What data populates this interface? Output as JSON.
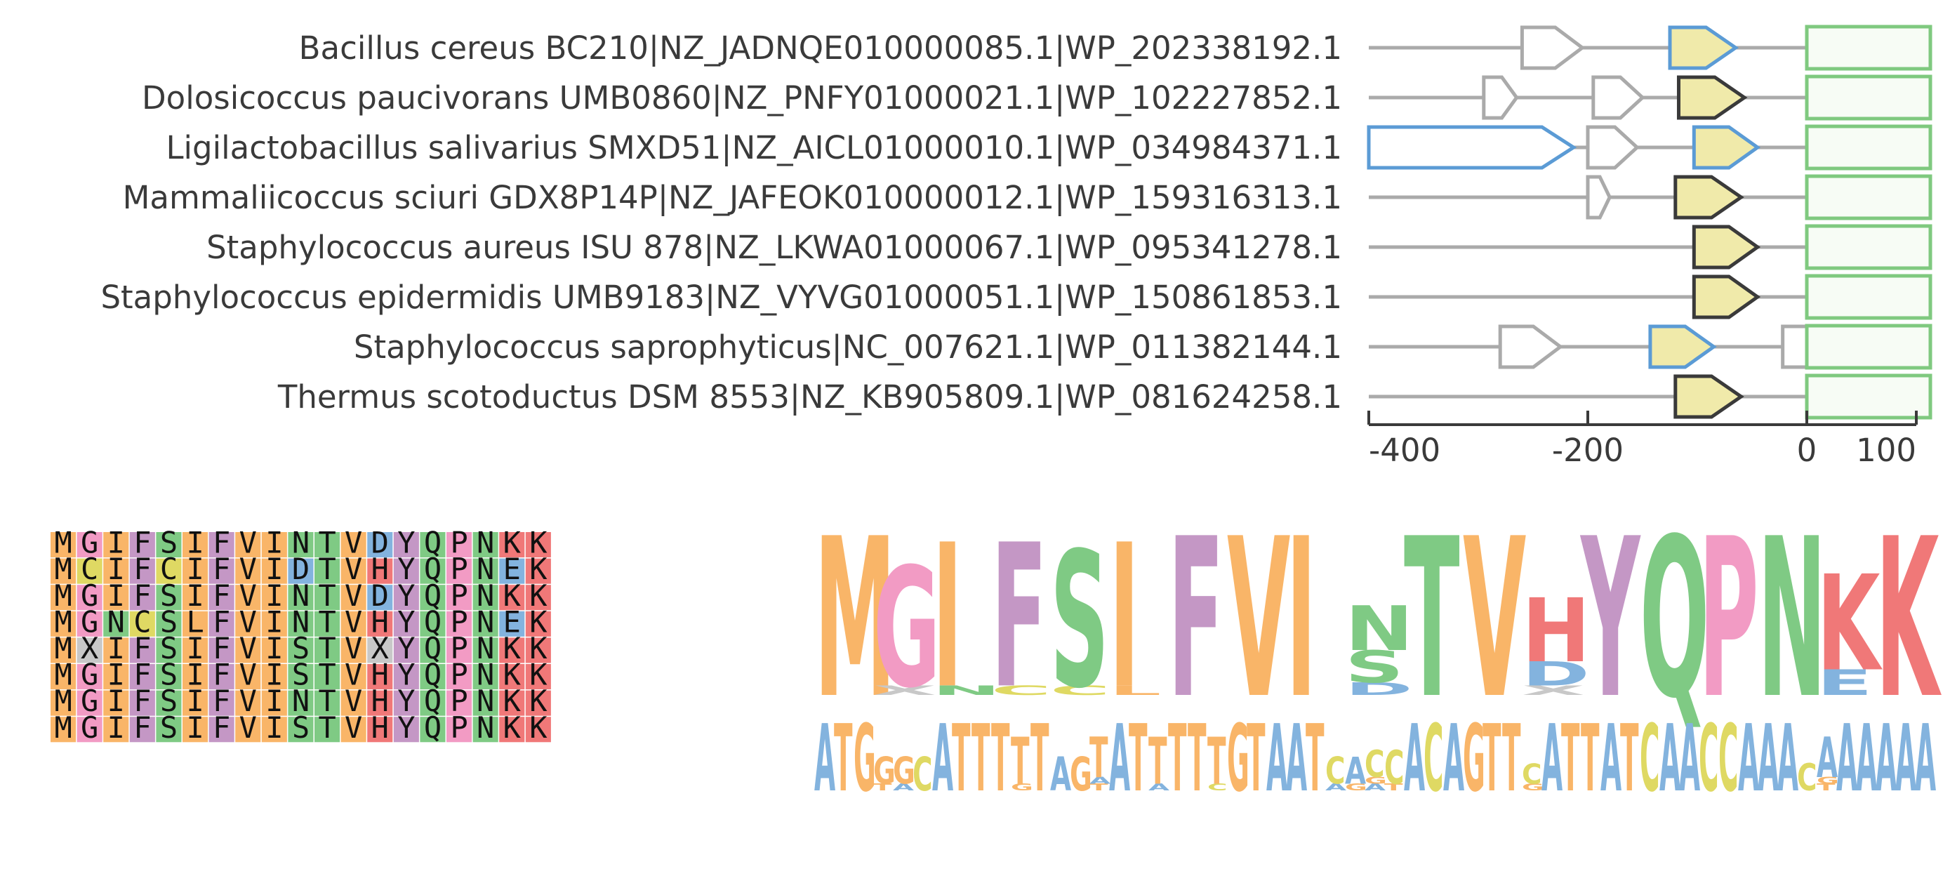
{
  "genomes": [
    {
      "label": "Bacillus cereus BC210|NZ_JADNQE010000085.1|WP_202338192.1",
      "genes": [
        {
          "start": -260,
          "end": -205,
          "strand": "+",
          "type": "other"
        },
        {
          "start": -125,
          "end": -65,
          "strand": "+",
          "type": "homolog"
        },
        {
          "start": 0,
          "end": 100,
          "strand": "box",
          "type": "target"
        }
      ]
    },
    {
      "label": "Dolosicoccus paucivorans UMB0860|NZ_PNFY01000021.1|WP_102227852.1",
      "genes": [
        {
          "start": -295,
          "end": -265,
          "strand": "+",
          "type": "other"
        },
        {
          "start": -195,
          "end": -150,
          "strand": "+",
          "type": "other"
        },
        {
          "start": -117,
          "end": -57,
          "strand": "+",
          "type": "focus"
        },
        {
          "start": 0,
          "end": 100,
          "strand": "box",
          "type": "target"
        }
      ]
    },
    {
      "label": "Ligilactobacillus salivarius SMXD51|NZ_AICL01000010.1|WP_034984371.1",
      "genes": [
        {
          "start": -400,
          "end": -213,
          "strand": "+",
          "type": "homolog"
        },
        {
          "start": -200,
          "end": -155,
          "strand": "+",
          "type": "other"
        },
        {
          "start": -103,
          "end": -45,
          "strand": "+",
          "type": "homolog"
        },
        {
          "start": 0,
          "end": 100,
          "strand": "box",
          "type": "target"
        }
      ]
    },
    {
      "label": "Mammaliicoccus sciuri GDX8P14P|NZ_JAFEOK010000012.1|WP_159316313.1",
      "genes": [
        {
          "start": -200,
          "end": -180,
          "strand": "+",
          "type": "other"
        },
        {
          "start": -120,
          "end": -60,
          "strand": "+",
          "type": "focus"
        },
        {
          "start": 0,
          "end": 100,
          "strand": "box",
          "type": "target"
        }
      ]
    },
    {
      "label": "Staphylococcus aureus ISU 878|NZ_LKWA01000067.1|WP_095341278.1",
      "genes": [
        {
          "start": -103,
          "end": -45,
          "strand": "+",
          "type": "focus"
        },
        {
          "start": 0,
          "end": 100,
          "strand": "box",
          "type": "target"
        }
      ]
    },
    {
      "label": "Staphylococcus epidermidis UMB9183|NZ_VYVG01000051.1|WP_150861853.1",
      "genes": [
        {
          "start": -103,
          "end": -45,
          "strand": "+",
          "type": "focus"
        },
        {
          "start": 0,
          "end": 100,
          "strand": "box",
          "type": "target"
        }
      ]
    },
    {
      "label": "Staphylococcus saprophyticus|NC_007621.1|WP_011382144.1",
      "genes": [
        {
          "start": -280,
          "end": -225,
          "strand": "+",
          "type": "other"
        },
        {
          "start": -143,
          "end": -85,
          "strand": "+",
          "type": "homolog"
        },
        {
          "start": -22,
          "end": 42,
          "strand": "+",
          "type": "other"
        },
        {
          "start": 0,
          "end": 100,
          "strand": "box",
          "type": "target"
        }
      ]
    },
    {
      "label": "Thermus scotoductus DSM 8553|NZ_KB905809.1|WP_081624258.1",
      "genes": [
        {
          "start": -120,
          "end": -60,
          "strand": "+",
          "type": "focus"
        },
        {
          "start": 0,
          "end": 100,
          "strand": "box",
          "type": "target"
        }
      ]
    }
  ],
  "axis": {
    "min": -400,
    "max": 100,
    "ticks": [
      -400,
      -200,
      0,
      100
    ]
  },
  "alignment": [
    "MGIFSIFVINTVDYQPNKK",
    "MCIFCIFVIDTVHYQPNEK",
    "MGIFSIFVINTVDYQPNKK",
    "MGNCSLFVINTVHYQPNEK",
    "MXIFSIFVISTVXYQPNKK",
    "MGIFSIFVISTVHYQPNKK",
    "MGIFSIFVINTVHYQPNKK",
    "MGIFSIFVISTVHYQPNKK"
  ],
  "protein_logo": [
    [
      [
        "M",
        1.0
      ]
    ],
    [
      [
        "X",
        0.06
      ],
      [
        "G",
        0.75
      ]
    ],
    [
      [
        "N",
        0.06
      ],
      [
        "I",
        0.9
      ]
    ],
    [
      [
        "C",
        0.06
      ],
      [
        "F",
        0.9
      ]
    ],
    [
      [
        "C",
        0.06
      ],
      [
        "S",
        0.85
      ]
    ],
    [
      [
        "L",
        0.06
      ],
      [
        "I",
        0.9
      ]
    ],
    [
      [
        "F",
        1.0
      ]
    ],
    [
      [
        "V",
        1.0
      ]
    ],
    [
      [
        "I",
        1.0
      ]
    ],
    [
      [
        "D",
        0.08
      ],
      [
        "S",
        0.2
      ],
      [
        "N",
        0.28
      ]
    ],
    [
      [
        "T",
        1.0
      ]
    ],
    [
      [
        "V",
        1.0
      ]
    ],
    [
      [
        "X",
        0.06
      ],
      [
        "D",
        0.15
      ],
      [
        "H",
        0.4
      ]
    ],
    [
      [
        "Y",
        1.0
      ]
    ],
    [
      [
        "Q",
        1.0
      ]
    ],
    [
      [
        "P",
        1.0
      ]
    ],
    [
      [
        "N",
        1.0
      ]
    ],
    [
      [
        "E",
        0.16
      ],
      [
        "K",
        0.6
      ]
    ],
    [
      [
        "K",
        1.0
      ]
    ]
  ],
  "dna_logo": [
    [
      [
        "A",
        1.0
      ]
    ],
    [
      [
        "T",
        1.0
      ]
    ],
    [
      [
        "G",
        1.0
      ]
    ],
    [
      [
        "T",
        0.1
      ],
      [
        "G",
        0.4
      ]
    ],
    [
      [
        "A",
        0.1
      ],
      [
        "G",
        0.4
      ]
    ],
    [
      [
        "C",
        0.5
      ]
    ],
    [
      [
        "A",
        1.0
      ]
    ],
    [
      [
        "T",
        1.0
      ]
    ],
    [
      [
        "T",
        1.0
      ]
    ],
    [
      [
        "T",
        1.0
      ]
    ],
    [
      [
        "G",
        0.1
      ],
      [
        "T",
        0.7
      ]
    ],
    [
      [
        "T",
        1.0
      ]
    ],
    [
      [
        "A",
        0.5
      ]
    ],
    [
      [
        "G",
        0.5
      ]
    ],
    [
      [
        "T",
        0.1
      ],
      [
        "A",
        0.1
      ],
      [
        "T",
        0.6
      ]
    ],
    [
      [
        "A",
        1.0
      ]
    ],
    [
      [
        "T",
        1.0
      ]
    ],
    [
      [
        "A",
        0.1
      ],
      [
        "T",
        0.7
      ]
    ],
    [
      [
        "T",
        1.0
      ]
    ],
    [
      [
        "T",
        1.0
      ]
    ],
    [
      [
        "C",
        0.1
      ],
      [
        "T",
        0.7
      ]
    ],
    [
      [
        "G",
        1.0
      ]
    ],
    [
      [
        "T",
        1.0
      ]
    ],
    [
      [
        "A",
        1.0
      ]
    ],
    [
      [
        "A",
        1.0
      ]
    ],
    [
      [
        "T",
        1.0
      ]
    ],
    [
      [
        "A",
        0.1
      ],
      [
        "C",
        0.4
      ]
    ],
    [
      [
        "G",
        0.1
      ],
      [
        "A",
        0.4
      ]
    ],
    [
      [
        "A",
        0.1
      ],
      [
        "G",
        0.1
      ],
      [
        "C",
        0.4
      ]
    ],
    [
      [
        "T",
        0.1
      ],
      [
        "C",
        0.5
      ]
    ],
    [
      [
        "A",
        1.0
      ]
    ],
    [
      [
        "C",
        1.0
      ]
    ],
    [
      [
        "A",
        1.0
      ]
    ],
    [
      [
        "G",
        1.0
      ]
    ],
    [
      [
        "T",
        1.0
      ]
    ],
    [
      [
        "T",
        1.0
      ]
    ],
    [
      [
        "G",
        0.1
      ],
      [
        "C",
        0.3
      ]
    ],
    [
      [
        "A",
        1.0
      ]
    ],
    [
      [
        "T",
        1.0
      ]
    ],
    [
      [
        "T",
        1.0
      ]
    ],
    [
      [
        "A",
        1.0
      ]
    ],
    [
      [
        "T",
        1.0
      ]
    ],
    [
      [
        "C",
        1.0
      ]
    ],
    [
      [
        "A",
        1.0
      ]
    ],
    [
      [
        "A",
        1.0
      ]
    ],
    [
      [
        "C",
        1.0
      ]
    ],
    [
      [
        "C",
        1.0
      ]
    ],
    [
      [
        "A",
        1.0
      ]
    ],
    [
      [
        "A",
        1.0
      ]
    ],
    [
      [
        "A",
        1.0
      ]
    ],
    [
      [
        "C",
        0.4
      ]
    ],
    [
      [
        "T",
        0.1
      ],
      [
        "G",
        0.1
      ],
      [
        "A",
        0.6
      ]
    ],
    [
      [
        "A",
        1.0
      ]
    ],
    [
      [
        "A",
        1.0
      ]
    ],
    [
      [
        "A",
        1.0
      ]
    ],
    [
      [
        "A",
        1.0
      ]
    ],
    [
      [
        "A",
        1.0
      ]
    ]
  ],
  "colors": {
    "line": "#aaaaaa",
    "other_gene": "#aaaaaa",
    "homolog_stroke": "#5b9bd5",
    "focus_stroke": "#3a3a3a",
    "gene_fill": "#f0eaaa",
    "target_stroke": "#7fc97f",
    "target_fill": "#f7fcf5",
    "axis": "#3a3a3a",
    "aa": {
      "M": "#f9b568",
      "G": "#f29bc4",
      "I": "#f9b568",
      "F": "#c497c5",
      "S": "#7fca84",
      "C": "#dfd963",
      "V": "#f9b568",
      "N": "#7fca84",
      "T": "#7fca84",
      "D": "#83b3de",
      "Y": "#c497c5",
      "Q": "#7fca84",
      "P": "#f29bc4",
      "K": "#f07878",
      "H": "#f07878",
      "E": "#83b3de",
      "L": "#f9b568",
      "X": "#c8c8c8"
    },
    "nt": {
      "A": "#83b3de",
      "T": "#f9b568",
      "G": "#f9b568",
      "C": "#dfd963"
    }
  }
}
